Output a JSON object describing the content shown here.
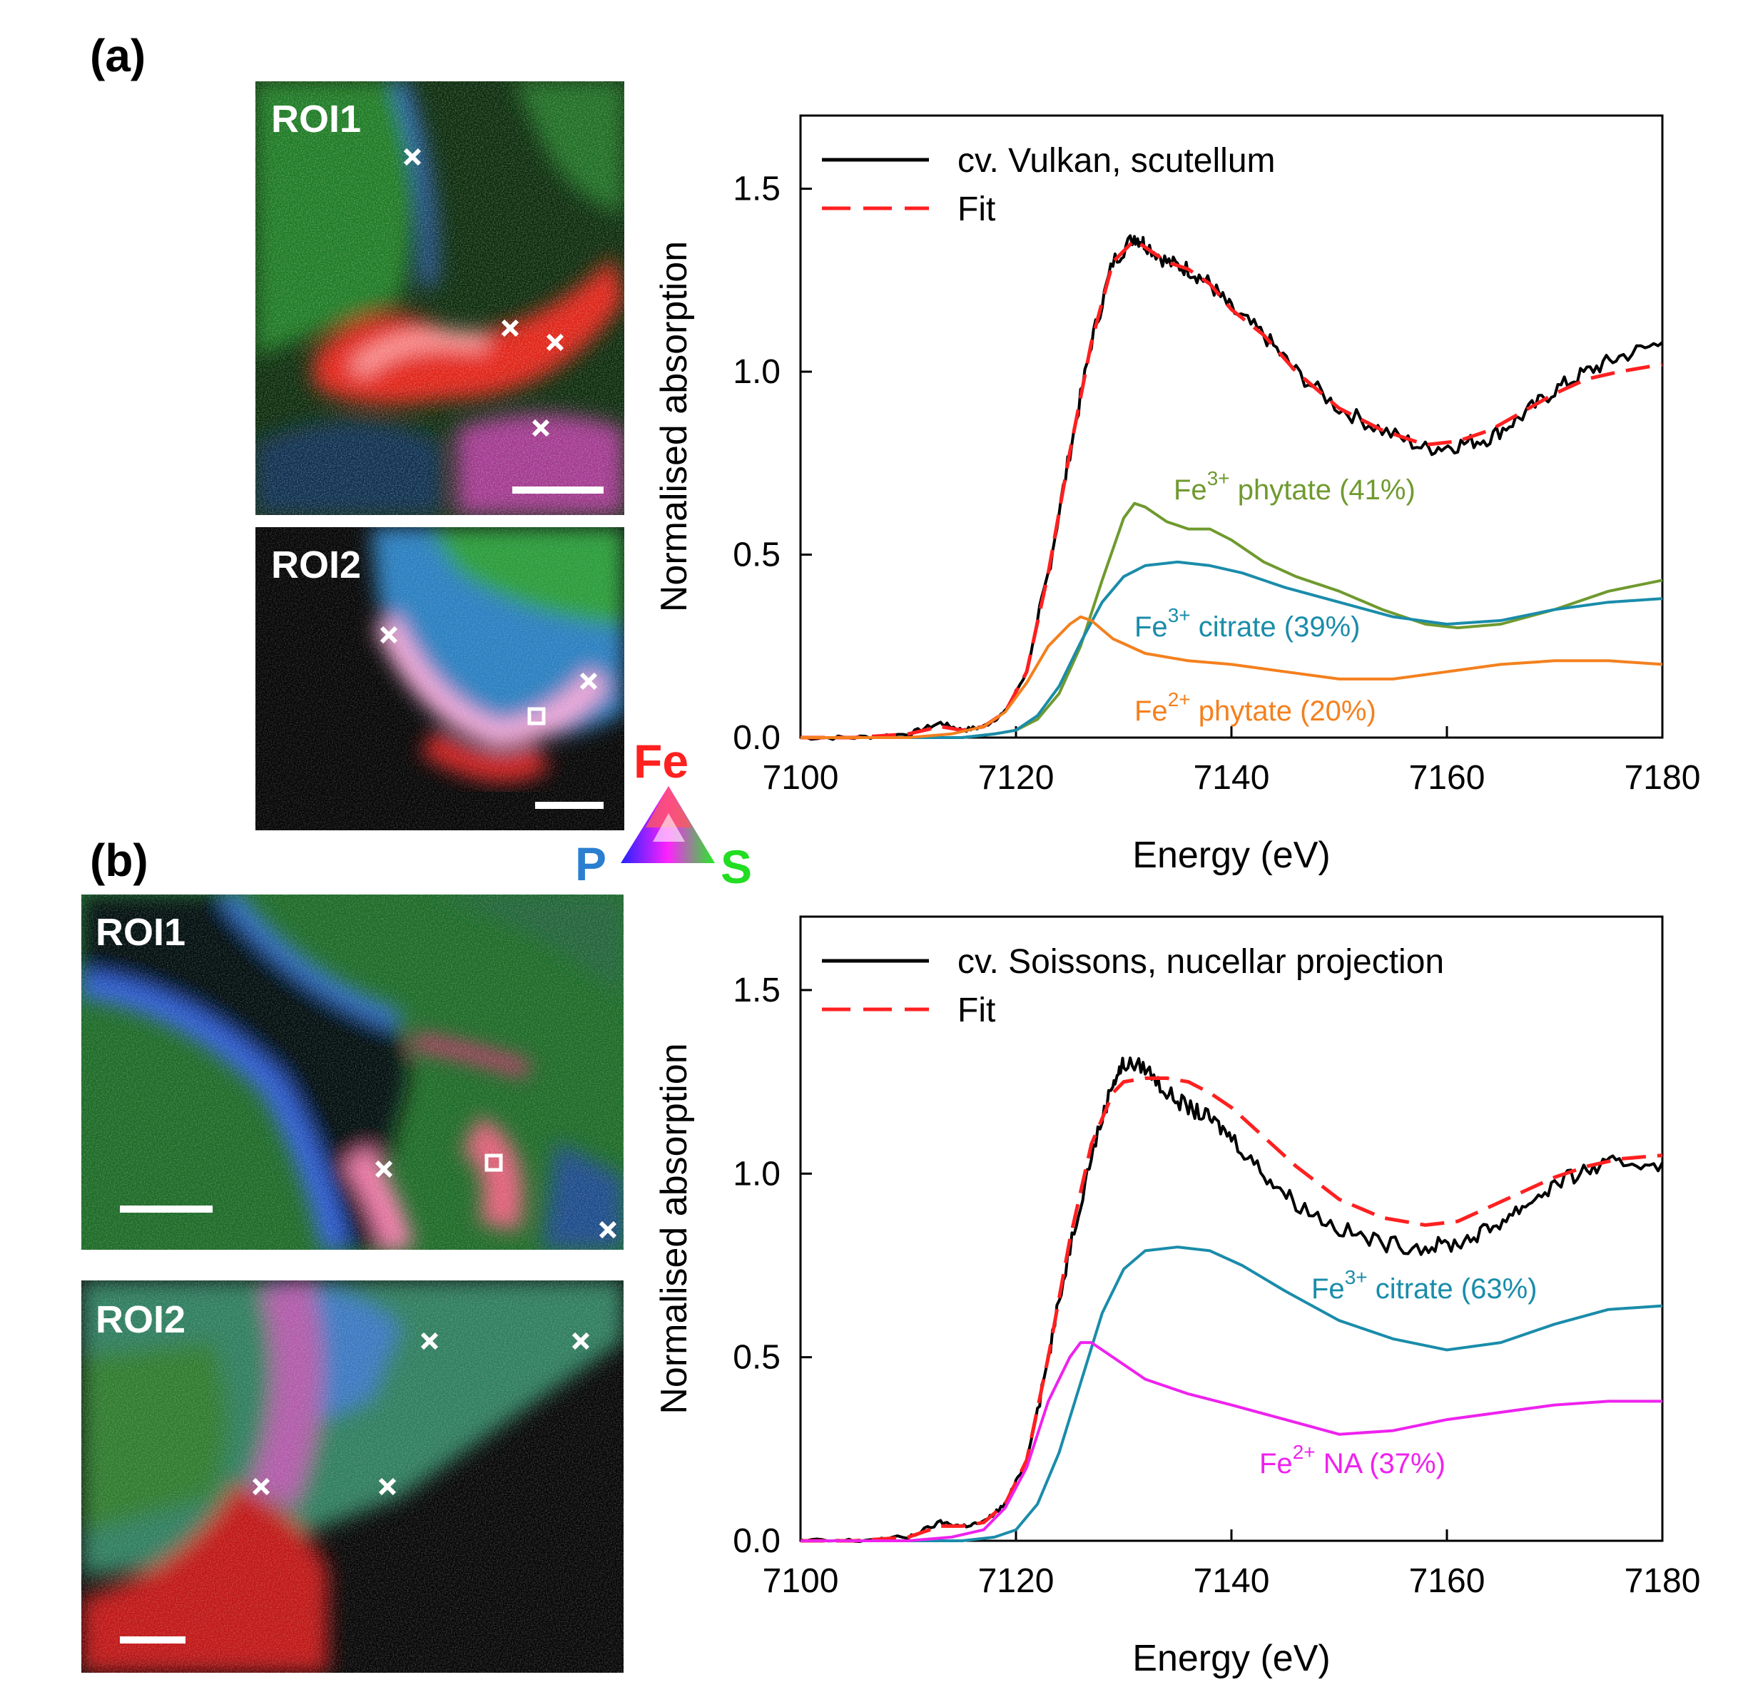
{
  "panels": {
    "a": {
      "label": "(a)",
      "maps": [
        {
          "label": "ROI1",
          "scale_bar": true
        },
        {
          "label": "ROI2",
          "scale_bar": true
        }
      ]
    },
    "b": {
      "label": "(b)",
      "maps": [
        {
          "label": "ROI1",
          "scale_bar": true
        },
        {
          "label": "ROI2",
          "scale_bar": true
        }
      ]
    }
  },
  "color_key": {
    "fe_label": "Fe",
    "fe_color": "#ff2020",
    "p_label": "P",
    "p_color": "#2a7fd0",
    "s_label": "S",
    "s_color": "#22dd22"
  },
  "colors": {
    "measured": "#000000",
    "fit": "#ff2020",
    "fe3_phytate": "#6f9a2f",
    "fe3_citrate": "#1a8caa",
    "fe2_phytate": "#f4801e",
    "fe2_na": "#ee22ee"
  },
  "chart_data": [
    {
      "type": "line",
      "panel": "a",
      "xlabel": "Energy (eV)",
      "ylabel": "Normalised absorption",
      "xlim": [
        7100,
        7180
      ],
      "ylim": [
        0,
        1.7
      ],
      "xticks": [
        7100,
        7120,
        7140,
        7160,
        7180
      ],
      "yticks": [
        0.0,
        0.5,
        1.0,
        1.5
      ],
      "ytick_labels": [
        "0.0",
        "0.5",
        "1.0",
        "1.5"
      ],
      "legend": [
        "cv. Vulkan, scutellum",
        "Fit"
      ],
      "series": [
        {
          "name": "cv. Vulkan, scutellum",
          "key": "measured",
          "style": "noisy",
          "x": [
            7100,
            7105,
            7110,
            7113,
            7115,
            7117,
            7119,
            7121,
            7123,
            7125,
            7127,
            7129,
            7131,
            7132,
            7134,
            7136,
            7138,
            7140,
            7143,
            7146,
            7150,
            7154,
            7158,
            7161,
            7164,
            7167,
            7170,
            7173,
            7176,
            7180
          ],
          "y": [
            0.0,
            0.0,
            0.01,
            0.04,
            0.02,
            0.03,
            0.07,
            0.18,
            0.45,
            0.78,
            1.08,
            1.3,
            1.37,
            1.35,
            1.3,
            1.28,
            1.24,
            1.17,
            1.1,
            1.0,
            0.9,
            0.84,
            0.79,
            0.8,
            0.82,
            0.88,
            0.95,
            1.0,
            1.04,
            1.08
          ]
        },
        {
          "name": "Fit",
          "key": "fit",
          "style": "dashed",
          "x": [
            7100,
            7105,
            7110,
            7113,
            7115,
            7117,
            7119,
            7121,
            7123,
            7125,
            7127,
            7129,
            7131,
            7132,
            7134,
            7136,
            7138,
            7140,
            7143,
            7146,
            7150,
            7154,
            7158,
            7161,
            7164,
            7167,
            7170,
            7173,
            7176,
            7180
          ],
          "y": [
            0.0,
            0.0,
            0.01,
            0.03,
            0.02,
            0.03,
            0.07,
            0.18,
            0.45,
            0.78,
            1.08,
            1.3,
            1.36,
            1.34,
            1.3,
            1.28,
            1.24,
            1.17,
            1.1,
            1.0,
            0.9,
            0.84,
            0.8,
            0.81,
            0.84,
            0.89,
            0.94,
            0.98,
            1.0,
            1.02
          ]
        },
        {
          "name": "Fe3+ phytate (41%)",
          "key": "fe3_phytate",
          "style": "solid",
          "x": [
            7100,
            7110,
            7115,
            7118,
            7120,
            7122,
            7124,
            7126,
            7128,
            7130,
            7131,
            7132,
            7134,
            7136,
            7138,
            7140,
            7143,
            7146,
            7150,
            7154,
            7158,
            7161,
            7165,
            7170,
            7175,
            7180
          ],
          "y": [
            0.0,
            0.0,
            0.0,
            0.01,
            0.02,
            0.05,
            0.12,
            0.25,
            0.43,
            0.6,
            0.64,
            0.63,
            0.59,
            0.57,
            0.57,
            0.54,
            0.48,
            0.44,
            0.4,
            0.35,
            0.31,
            0.3,
            0.31,
            0.35,
            0.4,
            0.43
          ]
        },
        {
          "name": "Fe3+ citrate (39%)",
          "key": "fe3_citrate",
          "style": "solid",
          "x": [
            7100,
            7110,
            7115,
            7118,
            7120,
            7122,
            7124,
            7126,
            7128,
            7130,
            7132,
            7135,
            7138,
            7141,
            7145,
            7150,
            7155,
            7160,
            7165,
            7170,
            7175,
            7180
          ],
          "y": [
            0.0,
            0.0,
            0.0,
            0.01,
            0.02,
            0.06,
            0.14,
            0.26,
            0.37,
            0.44,
            0.47,
            0.48,
            0.47,
            0.45,
            0.41,
            0.37,
            0.33,
            0.31,
            0.32,
            0.35,
            0.37,
            0.38
          ]
        },
        {
          "name": "Fe2+ phytate (20%)",
          "key": "fe2_phytate",
          "style": "solid",
          "x": [
            7100,
            7110,
            7114,
            7117,
            7119,
            7121,
            7123,
            7125,
            7126,
            7127,
            7129,
            7132,
            7136,
            7140,
            7145,
            7150,
            7155,
            7160,
            7165,
            7170,
            7175,
            7180
          ],
          "y": [
            0.0,
            0.0,
            0.01,
            0.03,
            0.07,
            0.15,
            0.25,
            0.31,
            0.33,
            0.32,
            0.27,
            0.23,
            0.21,
            0.2,
            0.18,
            0.16,
            0.16,
            0.18,
            0.2,
            0.21,
            0.21,
            0.2
          ]
        }
      ],
      "annotations": [
        {
          "key": "fe3_phytate",
          "pre": "Fe",
          "sup": "3+",
          "post": " phytate (41%)"
        },
        {
          "key": "fe3_citrate",
          "pre": "Fe",
          "sup": "3+",
          "post": " citrate (39%)"
        },
        {
          "key": "fe2_phytate",
          "pre": "Fe",
          "sup": "2+",
          "post": " phytate (20%)"
        }
      ]
    },
    {
      "type": "line",
      "panel": "b",
      "xlabel": "Energy (eV)",
      "ylabel": "Normalised absorption",
      "xlim": [
        7100,
        7180
      ],
      "ylim": [
        0,
        1.7
      ],
      "xticks": [
        7100,
        7120,
        7140,
        7160,
        7180
      ],
      "yticks": [
        0.0,
        0.5,
        1.0,
        1.5
      ],
      "ytick_labels": [
        "0.0",
        "0.5",
        "1.0",
        "1.5"
      ],
      "legend": [
        "cv. Soissons, nucellar projection",
        "Fit"
      ],
      "series": [
        {
          "name": "cv. Soissons, nucellar projection",
          "key": "measured",
          "style": "noisy",
          "x": [
            7100,
            7105,
            7110,
            7113,
            7115,
            7117,
            7119,
            7121,
            7123,
            7125,
            7127,
            7129,
            7130,
            7132,
            7134,
            7136,
            7138,
            7140,
            7143,
            7146,
            7150,
            7154,
            7158,
            7161,
            7164,
            7167,
            7170,
            7173,
            7176,
            7180
          ],
          "y": [
            0.0,
            0.0,
            0.01,
            0.05,
            0.04,
            0.05,
            0.1,
            0.22,
            0.5,
            0.8,
            1.05,
            1.25,
            1.3,
            1.29,
            1.22,
            1.18,
            1.15,
            1.1,
            1.0,
            0.92,
            0.85,
            0.81,
            0.8,
            0.81,
            0.85,
            0.91,
            0.97,
            1.01,
            1.03,
            1.03
          ]
        },
        {
          "name": "Fit",
          "key": "fit",
          "style": "dashed",
          "x": [
            7100,
            7105,
            7110,
            7113,
            7115,
            7117,
            7119,
            7121,
            7123,
            7125,
            7127,
            7129,
            7130,
            7132,
            7134,
            7136,
            7138,
            7140,
            7143,
            7146,
            7150,
            7154,
            7158,
            7161,
            7164,
            7167,
            7170,
            7173,
            7176,
            7180
          ],
          "y": [
            0.0,
            0.0,
            0.01,
            0.04,
            0.04,
            0.05,
            0.1,
            0.22,
            0.5,
            0.82,
            1.08,
            1.22,
            1.25,
            1.26,
            1.26,
            1.25,
            1.22,
            1.18,
            1.1,
            1.02,
            0.93,
            0.88,
            0.86,
            0.87,
            0.91,
            0.95,
            0.99,
            1.02,
            1.04,
            1.05
          ]
        },
        {
          "name": "Fe3+ citrate (63%)",
          "key": "fe3_citrate",
          "style": "solid",
          "x": [
            7100,
            7110,
            7115,
            7118,
            7120,
            7122,
            7124,
            7126,
            7128,
            7130,
            7132,
            7135,
            7138,
            7141,
            7145,
            7150,
            7155,
            7160,
            7165,
            7170,
            7175,
            7180
          ],
          "y": [
            0.0,
            0.0,
            0.0,
            0.01,
            0.03,
            0.1,
            0.24,
            0.43,
            0.62,
            0.74,
            0.79,
            0.8,
            0.79,
            0.75,
            0.68,
            0.6,
            0.55,
            0.52,
            0.54,
            0.59,
            0.63,
            0.64
          ]
        },
        {
          "name": "Fe2+ NA (37%)",
          "key": "fe2_na",
          "style": "solid",
          "x": [
            7100,
            7110,
            7114,
            7117,
            7119,
            7121,
            7123,
            7125,
            7126,
            7127,
            7129,
            7132,
            7136,
            7140,
            7145,
            7150,
            7155,
            7160,
            7165,
            7170,
            7175,
            7180
          ],
          "y": [
            0.0,
            0.0,
            0.01,
            0.03,
            0.09,
            0.2,
            0.38,
            0.5,
            0.54,
            0.54,
            0.5,
            0.44,
            0.4,
            0.37,
            0.33,
            0.29,
            0.3,
            0.33,
            0.35,
            0.37,
            0.38,
            0.38
          ]
        }
      ],
      "annotations": [
        {
          "key": "fe3_citrate",
          "pre": "Fe",
          "sup": "3+",
          "post": " citrate (63%)"
        },
        {
          "key": "fe2_na",
          "pre": "Fe",
          "sup": "2+",
          "post": " NA (37%)"
        }
      ]
    }
  ]
}
